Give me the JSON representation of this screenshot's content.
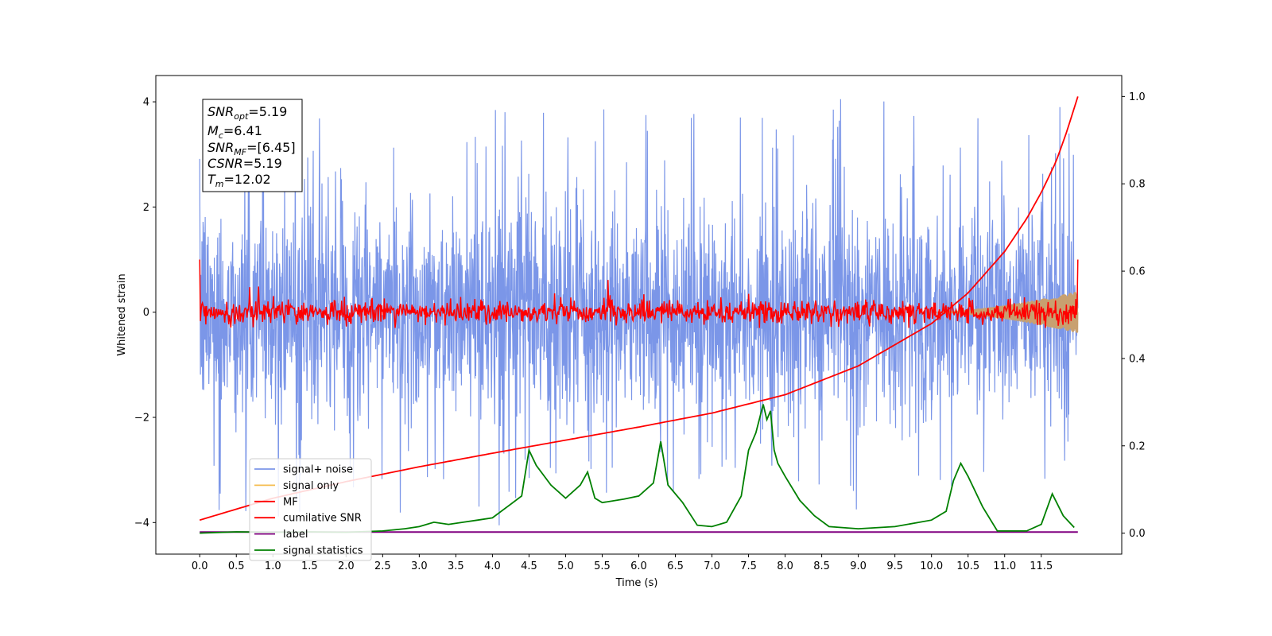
{
  "chart_data": {
    "type": "line",
    "xlabel": "Time (s)",
    "ylabel": "Whitened strain",
    "xlim": [
      -0.6,
      12.6
    ],
    "ylim": [
      -4.6,
      4.5
    ],
    "y2lim": [
      -0.048,
      1.048
    ],
    "x_ticks": [
      "0.0",
      "0.5",
      "1.0",
      "1.5",
      "2.0",
      "2.5",
      "3.0",
      "3.5",
      "4.0",
      "4.5",
      "5.0",
      "5.5",
      "6.0",
      "6.5",
      "7.0",
      "7.5",
      "8.0",
      "8.5",
      "9.0",
      "9.5",
      "10.0",
      "10.5",
      "11.0",
      "11.5"
    ],
    "y_ticks": [
      "4",
      "2",
      "0",
      "−2",
      "−4"
    ],
    "y2_ticks": [
      "1.0",
      "0.8",
      "0.6",
      "0.4",
      "0.2",
      "0.0"
    ],
    "grid": false,
    "legend_placement": "lower-left",
    "colors": {
      "signal_noise": "#7b96e8",
      "signal_only": "#f5bd50",
      "mf": "#ff0000",
      "cumulative_snr": "#ff0000",
      "label": "#800080",
      "signal_statistics": "#008000"
    },
    "annotation": {
      "snr_opt": {
        "base": "SNR",
        "sub": "opt",
        "value": "=5.19"
      },
      "mc": {
        "base": "M",
        "sub": "c",
        "value": "=6.41"
      },
      "snr_mf": {
        "base": "SNR",
        "sub": "MF",
        "value": "=[6.45]"
      },
      "csnr": {
        "base": "CSNR",
        "sub": "",
        "value": "=5.19"
      },
      "tm": {
        "base": "T",
        "sub": "m",
        "value": "=12.02"
      }
    },
    "series": [
      {
        "name": "signal+ noise",
        "axis": "left",
        "style": "noise band approx. -2.7 to 2.8, peaks to ±4"
      },
      {
        "name": "signal only",
        "axis": "left",
        "style": "chirp amplitude growing to ~0.4 near 12 s"
      },
      {
        "name": "MF",
        "axis": "left",
        "style": "noise around 0, spikes near t=0 and t=12"
      },
      {
        "name": "cumilative SNR",
        "axis": "right",
        "x": [
          0.0,
          1.0,
          2.0,
          3.0,
          4.0,
          5.0,
          6.0,
          7.0,
          8.0,
          9.0,
          10.0,
          10.5,
          11.0,
          11.3,
          11.5,
          11.7,
          11.85,
          12.0
        ],
        "y": [
          0.03,
          0.08,
          0.118,
          0.152,
          0.183,
          0.213,
          0.243,
          0.275,
          0.317,
          0.383,
          0.48,
          0.55,
          0.645,
          0.72,
          0.78,
          0.85,
          0.92,
          1.0
        ]
      },
      {
        "name": "label",
        "axis": "right",
        "x": [
          0.0,
          12.0
        ],
        "y": [
          0.0025,
          0.0025
        ]
      },
      {
        "name": "signal statistics",
        "axis": "right",
        "x": [
          0.0,
          0.5,
          1.0,
          1.5,
          2.0,
          2.5,
          2.8,
          3.0,
          3.2,
          3.4,
          3.6,
          3.8,
          4.0,
          4.2,
          4.4,
          4.5,
          4.6,
          4.8,
          5.0,
          5.2,
          5.3,
          5.4,
          5.5,
          5.8,
          6.0,
          6.2,
          6.3,
          6.4,
          6.6,
          6.8,
          7.0,
          7.2,
          7.4,
          7.5,
          7.6,
          7.7,
          7.75,
          7.8,
          7.85,
          7.9,
          8.0,
          8.2,
          8.4,
          8.6,
          9.0,
          9.5,
          10.0,
          10.2,
          10.3,
          10.4,
          10.5,
          10.7,
          10.9,
          11.0,
          11.3,
          11.5,
          11.65,
          11.8,
          11.95
        ],
        "y": [
          0.0,
          0.003,
          0.002,
          0.003,
          0.002,
          0.005,
          0.01,
          0.015,
          0.025,
          0.02,
          0.025,
          0.03,
          0.035,
          0.06,
          0.085,
          0.19,
          0.155,
          0.11,
          0.08,
          0.11,
          0.14,
          0.08,
          0.07,
          0.078,
          0.085,
          0.115,
          0.21,
          0.11,
          0.07,
          0.018,
          0.015,
          0.025,
          0.085,
          0.19,
          0.23,
          0.295,
          0.26,
          0.28,
          0.19,
          0.16,
          0.13,
          0.075,
          0.04,
          0.015,
          0.01,
          0.015,
          0.03,
          0.05,
          0.12,
          0.16,
          0.13,
          0.06,
          0.005,
          0.005,
          0.005,
          0.02,
          0.09,
          0.04,
          0.013
        ]
      }
    ]
  }
}
